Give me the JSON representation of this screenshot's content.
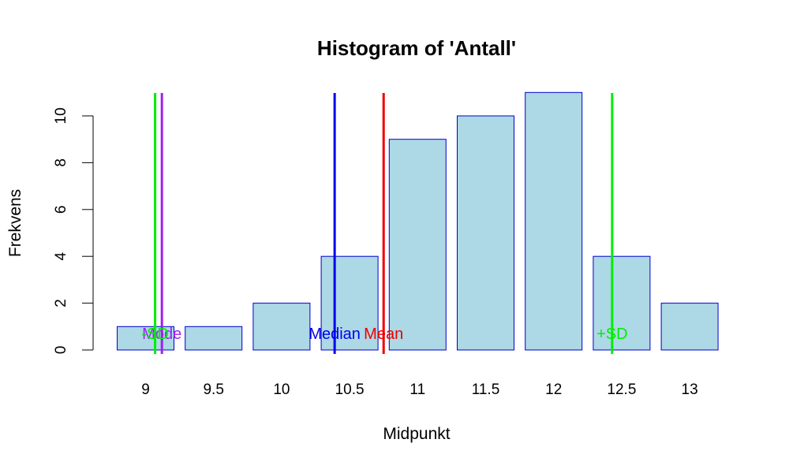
{
  "chart_data": {
    "type": "bar",
    "title": "Histogram of 'Antall'",
    "xlabel": "Midpunkt",
    "ylabel": "Frekvens",
    "categories": [
      "9",
      "9.5",
      "10",
      "10.5",
      "11",
      "11.5",
      "12",
      "12.5",
      "13"
    ],
    "values": [
      1,
      1,
      2,
      4,
      9,
      10,
      11,
      4,
      2
    ],
    "ylim": [
      0,
      11
    ],
    "yticks": [
      "0",
      "2",
      "4",
      "6",
      "8",
      "10"
    ],
    "bar_fill": "#add8e6",
    "bar_border": "#0000cd",
    "grid": false,
    "reference_lines": [
      {
        "label": "",
        "x": 9.07,
        "color": "#00ee00"
      },
      {
        "label": "Mode",
        "x": 9.12,
        "color": "#a020f0"
      },
      {
        "label": "Median",
        "x": 10.39,
        "color": "#0000ee"
      },
      {
        "label": "Mean",
        "x": 10.75,
        "color": "#ee0000"
      },
      {
        "label": "+SD",
        "x": 12.43,
        "color": "#00ee00"
      },
      {
        "label": "-SD",
        "x": 9.07,
        "color": "#00ee00"
      }
    ]
  }
}
